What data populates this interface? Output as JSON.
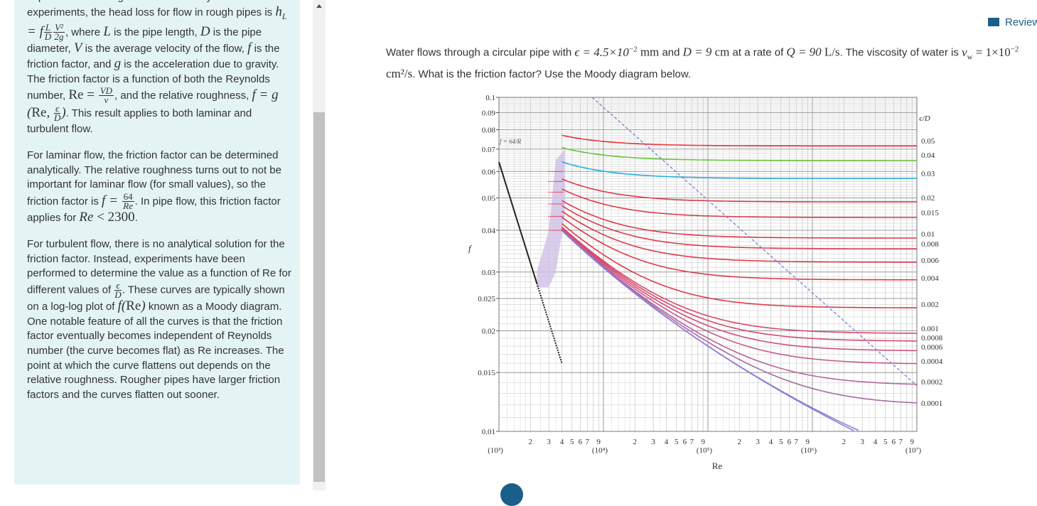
{
  "sidebar": {
    "p1_a": "imperfections. Using dimensional analysis and experiments, the head loss for flow in rough pipes is",
    "p1_b": ", where",
    "p1_c": "is the pipe length,",
    "p1_d": "is the pipe diameter,",
    "p1_e": "is the average velocity of the flow,",
    "p1_f": "is the friction factor, and",
    "p1_g": "is the acceleration due to gravity. The friction factor is a function of both the Reynolds number,",
    "p1_h": ", and the relative roughness,",
    "p1_i": ". This result applies to both laminar and turbulent flow.",
    "p2_a": "For laminar flow, the friction factor can be determined analytically. The relative roughness turns out to not be important for laminar flow (for small values), so the friction factor is",
    "p2_b": ". In pipe flow, this friction factor applies for",
    "p3_a": "For turbulent flow, there is no analytical solution for the friction factor. Instead, experiments have been performed to determine the value as a function of Re for different values of",
    "p3_b": ". These curves are typically shown on a log-log plot of",
    "p3_c": "known as a Moody diagram. One notable feature of all the curves is that the friction factor eventually becomes independent of Reynolds number (the curve becomes flat) as Re increases. The point at which the curve flattens out depends on the relative roughness. Rougher pipes have larger friction factors and the curves flatten out sooner."
  },
  "header": {
    "review_label": "Review"
  },
  "question": {
    "t1": "Water flows through a circular pipe with",
    "eps": "ϵ = 4.5×10",
    "eps_exp": "−2",
    "eps_unit": "mm",
    "t2": "and",
    "D": "D = 9",
    "D_unit": "cm",
    "t3": "at a rate of",
    "Q": "Q = 90",
    "Q_unit": "L/s",
    "t4": ". The viscosity of water is",
    "nu": "ν",
    "nu_sub": "w",
    "nu_val": " = 1×10",
    "nu_exp": "−2",
    "nu_unit": "cm²/s",
    "t5": ". What is the friction factor? Use the Moody diagram below."
  },
  "chart_data": {
    "type": "line",
    "xscale": "log",
    "yscale": "log",
    "xlim": [
      1000,
      10000000
    ],
    "ylim": [
      0.01,
      0.1
    ],
    "xlabel": "Re",
    "ylabel": "f",
    "legend_title": "ϵ/D",
    "laminar_label": "f = 64/R",
    "y_ticks": [
      "0.1",
      "0.09",
      "0.08",
      "0.07",
      "0.06",
      "0.05",
      "0.04",
      "0.03",
      "0.025",
      "0.02",
      "0.015",
      "0.01"
    ],
    "decade_labels": [
      "(10³)",
      "(10⁴)",
      "(10⁵)",
      "(10⁶)",
      "(10⁷)"
    ],
    "minor_tick_labels": [
      "2",
      "3",
      "4",
      "5",
      "6",
      "7",
      "9"
    ],
    "series": [
      {
        "name": "0.05",
        "color": "#e8323c",
        "f_full": 0.0716
      },
      {
        "name": "0.04",
        "color": "#66c23a",
        "f_full": 0.0651
      },
      {
        "name": "0.03",
        "color": "#25aee0",
        "f_full": 0.0574
      },
      {
        "name": "0.02",
        "color": "#dd3a48",
        "f_full": 0.049
      },
      {
        "name": "0.015",
        "color": "#dd3a48",
        "f_full": 0.0438
      },
      {
        "name": "0.01",
        "color": "#dd3a48",
        "f_full": 0.0379
      },
      {
        "name": "0.008",
        "color": "#dd3a48",
        "f_full": 0.0353
      },
      {
        "name": "0.006",
        "color": "#dd3a48",
        "f_full": 0.0324
      },
      {
        "name": "0.004",
        "color": "#dd3a48",
        "f_full": 0.0284
      },
      {
        "name": "0.002",
        "color": "#dd3a48",
        "f_full": 0.0234
      },
      {
        "name": "0.001",
        "color": "#d64a6a",
        "f_full": 0.0196
      },
      {
        "name": "0.0008",
        "color": "#d64a6a",
        "f_full": 0.0187
      },
      {
        "name": "0.0006",
        "color": "#d0507a",
        "f_full": 0.0176
      },
      {
        "name": "0.0004",
        "color": "#c65a8a",
        "f_full": 0.0163
      },
      {
        "name": "0.0002",
        "color": "#b6649a",
        "f_full": 0.0137
      },
      {
        "name": "0.0001",
        "color": "#a86aa8",
        "f_full": 0.012
      }
    ]
  }
}
